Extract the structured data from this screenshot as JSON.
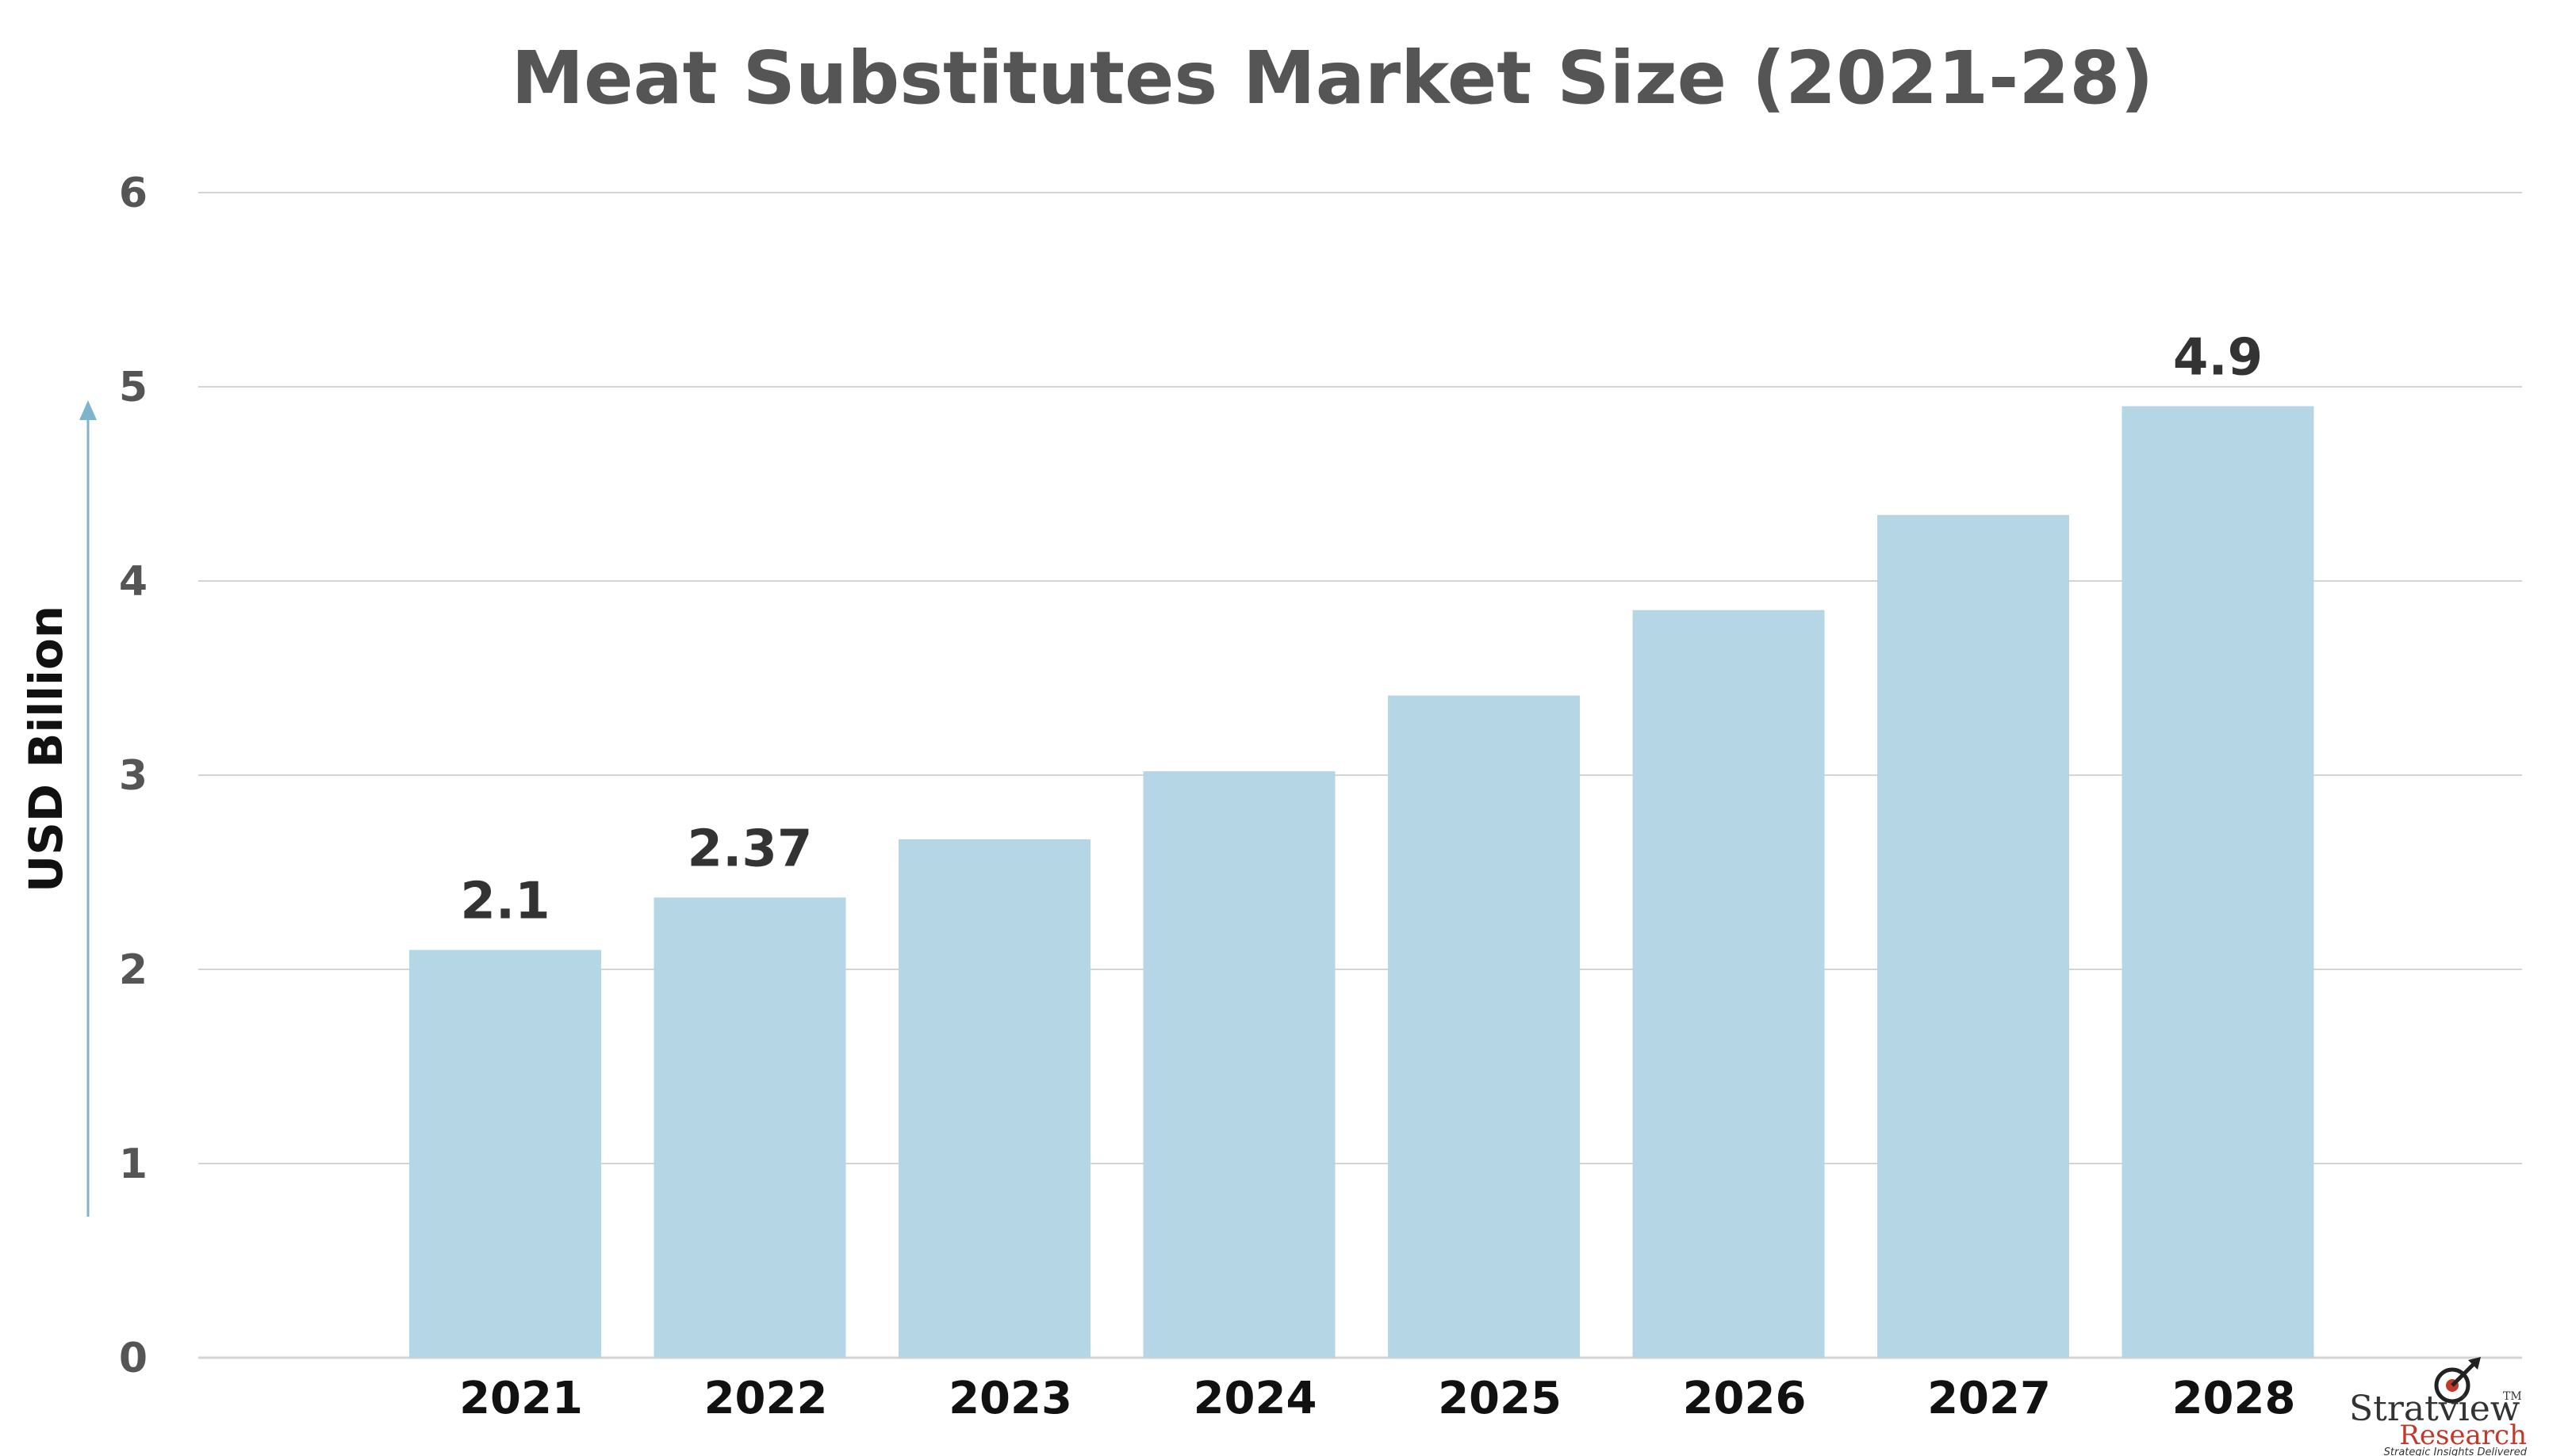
{
  "chart_data": {
    "type": "bar",
    "title": "Meat Substitutes Market Size (2021-28)",
    "ylabel": "USD Billion",
    "xlabel": "",
    "categories": [
      "2021",
      "2022",
      "2023",
      "2024",
      "2025",
      "2026",
      "2027",
      "2028"
    ],
    "values": [
      2.1,
      2.37,
      2.67,
      3.02,
      3.41,
      3.85,
      4.34,
      4.9
    ],
    "data_labels": [
      "2.1",
      "2.37",
      "",
      "",
      "",
      "",
      "",
      "4.9"
    ],
    "yticks": [
      "0",
      "1",
      "2",
      "3",
      "4",
      "5",
      "6"
    ],
    "ylim": [
      0,
      6
    ],
    "grid": true,
    "colors": {
      "bar": "#b5d6e5",
      "grid": "#d4d4d4",
      "arrow": "#7fb5cc",
      "title": "#555555"
    }
  },
  "logo": {
    "name": "Stratview",
    "trademark": "TM",
    "sub": "Research",
    "tagline": "Strategic Insights Delivered"
  }
}
